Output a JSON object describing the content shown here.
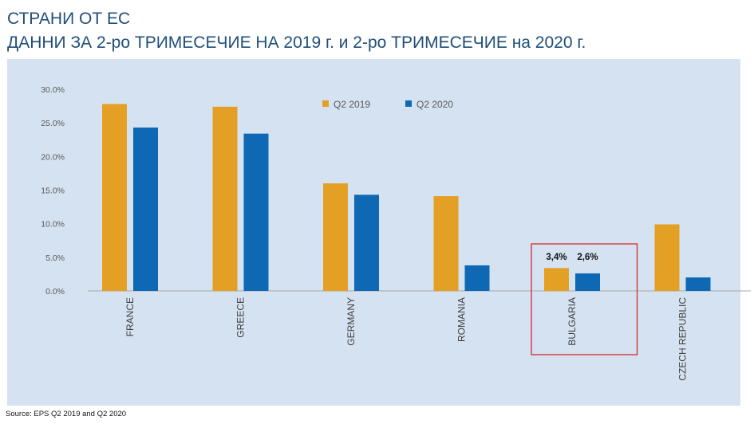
{
  "header": {
    "title_line1": "СТРАНИ ОТ ЕС",
    "title_line2": "ДАННИ ЗА 2-ро ТРИМЕСЕЧИЕ НА 2019 г. и 2-ро ТРИМЕСЕЧИЕ на 2020 г."
  },
  "footer": {
    "source": "Source: EPS Q2 2019 and Q2 2020"
  },
  "colors": {
    "q2_2019": "#e3a024",
    "q2_2020": "#0f68b4",
    "highlight": "#d62b2b",
    "panel": "#d5e2f1"
  },
  "chart_data": {
    "type": "bar",
    "categories": [
      "FRANCE",
      "GREECE",
      "GERMANY",
      "ROMANIA",
      "BULGARIA",
      "CZECH REPUBLIC"
    ],
    "series": [
      {
        "name": "Q2 2019",
        "values": [
          27.8,
          27.4,
          16.0,
          14.1,
          3.4,
          9.9
        ]
      },
      {
        "name": "Q2 2020",
        "values": [
          24.3,
          23.4,
          14.3,
          3.8,
          2.6,
          2.0
        ]
      }
    ],
    "data_labels": [
      {
        "category": "BULGARIA",
        "series": "Q2 2019",
        "text": "3,4%"
      },
      {
        "category": "BULGARIA",
        "series": "Q2 2020",
        "text": "2,6%"
      }
    ],
    "highlighted_category": "BULGARIA",
    "y_ticks": [
      "0.0%",
      "5.0%",
      "10.0%",
      "15.0%",
      "20.0%",
      "25.0%",
      "30.0%"
    ],
    "ylim": [
      0,
      30
    ],
    "legend_position": "top-center",
    "grid": false
  }
}
